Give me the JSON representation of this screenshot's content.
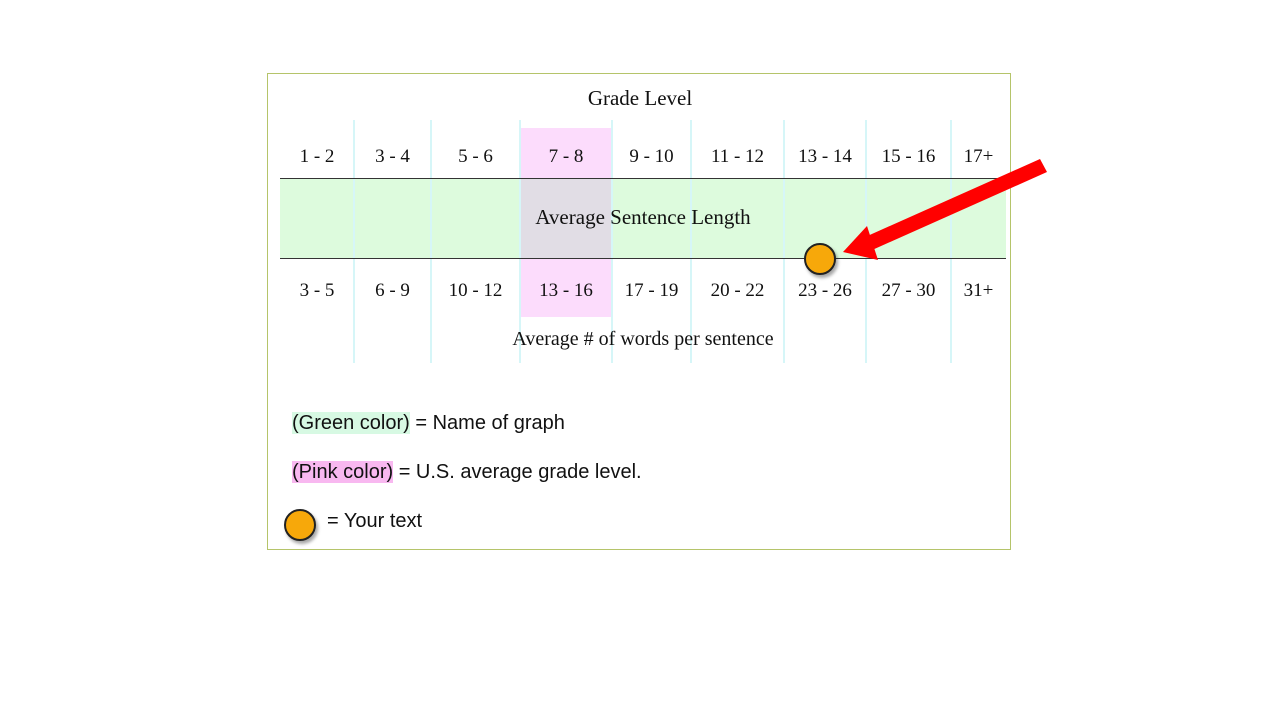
{
  "diagram": {
    "title": "Grade Level",
    "band_label": "Average Sentence Length",
    "sub_label": "Average # of words per sentence",
    "grade_levels": [
      "1 - 2",
      "3 - 4",
      "5 - 6",
      "7 - 8",
      "9 - 10",
      "11 - 12",
      "13 - 14",
      "15 - 16",
      "17+"
    ],
    "word_ranges": [
      "3 - 5",
      "6 - 9",
      "10 - 12",
      "13 - 16",
      "17 - 19",
      "20 - 22",
      "23 - 26",
      "27 - 30",
      "31+"
    ],
    "highlighted_grade": "7 - 8",
    "your_text_position": "23 - 26"
  },
  "legend": {
    "green_tag": "(Green color)",
    "green_desc": " = Name of graph",
    "pink_tag": "(Pink color)",
    "pink_desc": " = U.S. average grade level.",
    "marker_desc": "= Your text"
  },
  "colors": {
    "green": "#ddfbdd",
    "pink": "#fcdcfc",
    "marker": "#f7a80a",
    "arrow": "#ff0000"
  }
}
